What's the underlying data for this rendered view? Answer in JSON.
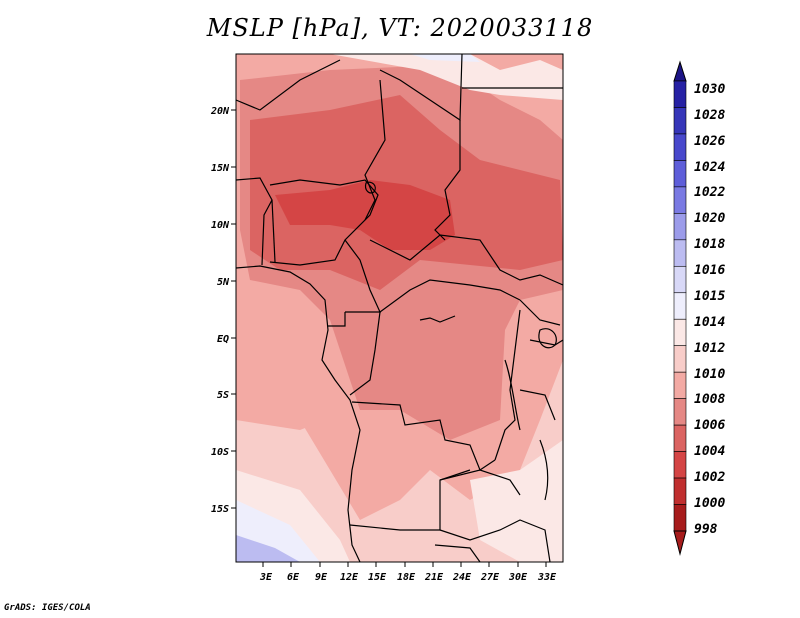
{
  "title": "MSLP [hPa], VT: 2020033118",
  "footer": "GrADS: IGES/COLA",
  "map": {
    "y_ticks": [
      "20N",
      "15N",
      "10N",
      "5N",
      "EQ",
      "5S",
      "10S",
      "15S"
    ],
    "x_ticks": [
      "3E",
      "6E",
      "9E",
      "12E",
      "15E",
      "18E",
      "21E",
      "24E",
      "27E",
      "30E",
      "33E"
    ]
  },
  "colorbar": {
    "levels": [
      "1030",
      "1028",
      "1026",
      "1024",
      "1022",
      "1020",
      "1018",
      "1016",
      "1015",
      "1014",
      "1012",
      "1010",
      "1008",
      "1006",
      "1004",
      "1002",
      "1000",
      "998"
    ],
    "colors": [
      "#1c1486",
      "#2621a4",
      "#3636b9",
      "#4848cc",
      "#5e5ed9",
      "#7a7ae3",
      "#9c9cea",
      "#bcbcf1",
      "#d8d8f7",
      "#eeeefc",
      "#fbe8e6",
      "#f8cdc9",
      "#f3aaa4",
      "#e58885",
      "#db6462",
      "#d44545",
      "#c02f2f",
      "#a71c1c"
    ]
  }
}
